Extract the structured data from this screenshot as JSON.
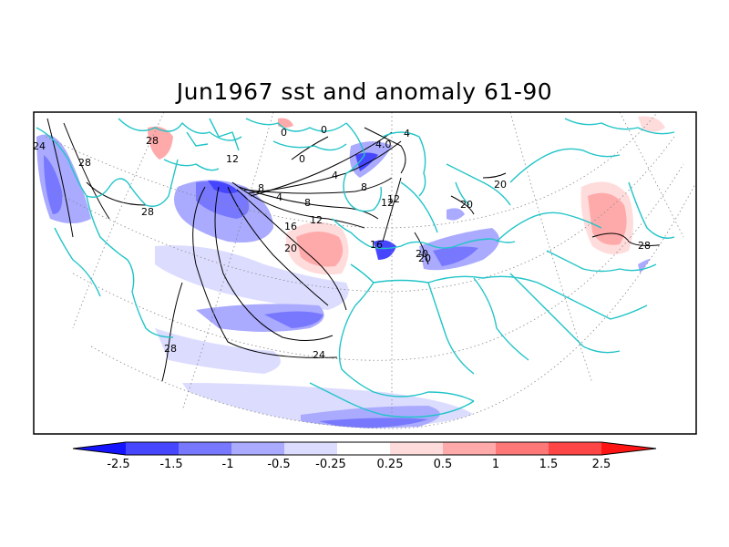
{
  "title": "Jun1967 sst and anomaly 61-90",
  "colorbar": {
    "labels": [
      "-2.5",
      "-1.5",
      "-1",
      "-0.5",
      "-0.25",
      "0.25",
      "0.5",
      "1",
      "1.5",
      "2.5"
    ],
    "colors": [
      "#1414ff",
      "#4646ff",
      "#7878ff",
      "#aaaaff",
      "#dcdcff",
      "#ffffff",
      "#ffdcdc",
      "#ffaaaa",
      "#ff7878",
      "#ff4646",
      "#ff1414"
    ]
  },
  "contour_labels": [
    "28",
    "24",
    "28",
    "28",
    "12",
    "8",
    "4",
    "8",
    "12",
    "16",
    "20",
    "24",
    "28",
    "16",
    "20",
    "20",
    "12",
    "8",
    "4",
    "0",
    "0",
    "0",
    "4",
    "4.0",
    "12",
    "20",
    "20",
    "28"
  ]
}
